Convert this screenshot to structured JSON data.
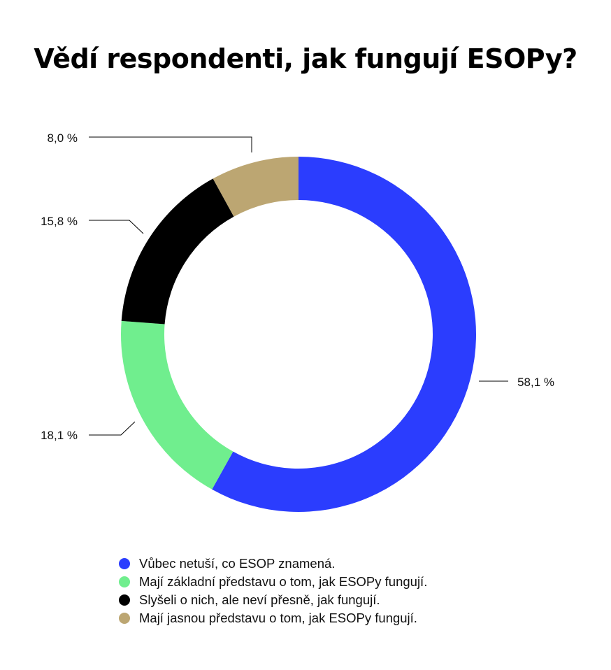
{
  "chart_data": {
    "type": "pie",
    "title": "Vědí respondenti, jak fungují ESOPy?",
    "slices": [
      {
        "name": "Vůbec netuší, co ESOP znamená.",
        "value": 58.1,
        "label": "58,1 %",
        "color": "#2b3dfe"
      },
      {
        "name": "Mají základní představu o tom, jak ESOPy fungují.",
        "value": 18.1,
        "label": "18,1 %",
        "color": "#70ee8e"
      },
      {
        "name": "Slyšeli o nich, ale neví přesně, jak fungují.",
        "value": 15.8,
        "label": "15,8 %",
        "color": "#000000"
      },
      {
        "name": "Mají jasnou představu o tom, jak ESOPy fungují.",
        "value": 8.0,
        "label": "8,0 %",
        "color": "#bca672"
      }
    ],
    "donut": true,
    "legend_position": "bottom"
  }
}
